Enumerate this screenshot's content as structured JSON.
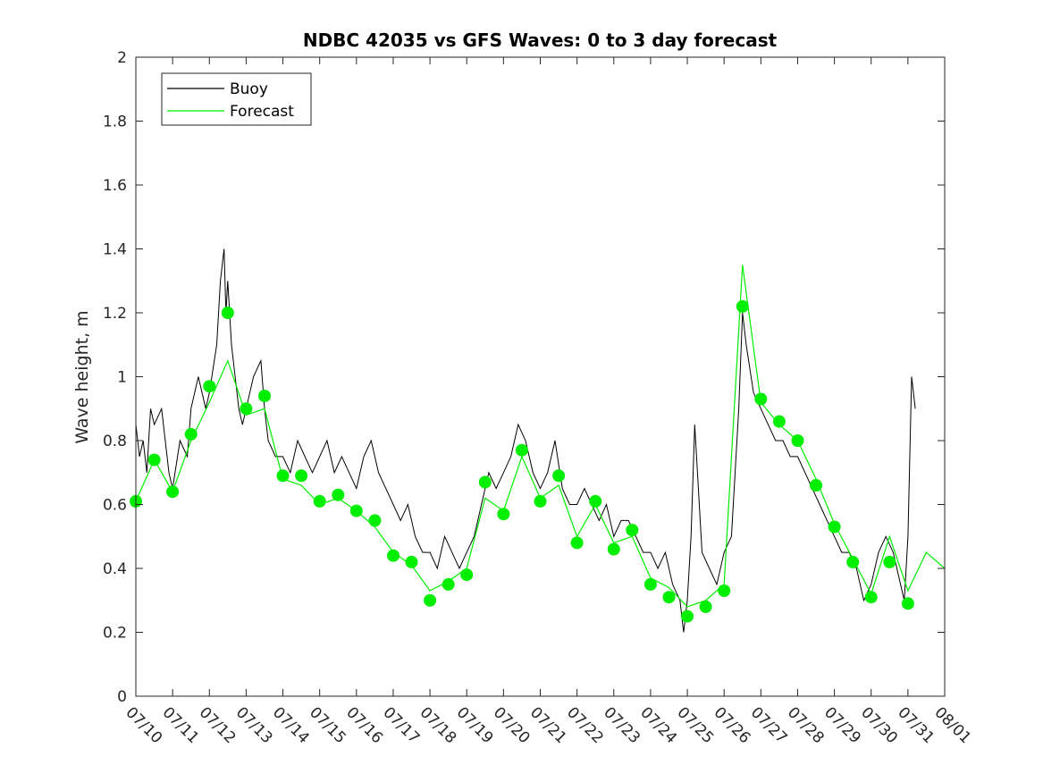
{
  "chart_data": {
    "type": "line",
    "title": "NDBC 42035 vs GFS Waves: 0 to 3 day forecast",
    "xlabel": "",
    "ylabel": "Wave height, m",
    "xlim": [
      "07/10",
      "08/01"
    ],
    "ylim": [
      0,
      2
    ],
    "yticks": [
      "0",
      "0.2",
      "0.4",
      "0.6",
      "0.8",
      "1",
      "1.2",
      "1.4",
      "1.6",
      "1.8",
      "2"
    ],
    "xticks": [
      "07/10",
      "07/11",
      "07/12",
      "07/13",
      "07/14",
      "07/15",
      "07/16",
      "07/17",
      "07/18",
      "07/19",
      "07/20",
      "07/21",
      "07/22",
      "07/23",
      "07/24",
      "07/25",
      "07/26",
      "07/27",
      "07/28",
      "07/29",
      "07/30",
      "07/31",
      "08/01"
    ],
    "grid": false,
    "legend": {
      "placement": "top-left",
      "entries": [
        "Buoy",
        "Forecast"
      ]
    },
    "colors": {
      "buoy": "#000000",
      "forecast": "#00ee00",
      "analysis_marker": "#00ee00"
    },
    "series": [
      {
        "name": "Buoy",
        "x_days": [
          0,
          0.1,
          0.2,
          0.3,
          0.4,
          0.5,
          0.7,
          0.9,
          1.0,
          1.2,
          1.4,
          1.5,
          1.7,
          1.9,
          2.0,
          2.2,
          2.3,
          2.4,
          2.45,
          2.5,
          2.6,
          2.7,
          2.8,
          2.9,
          3.0,
          3.2,
          3.4,
          3.5,
          3.6,
          3.8,
          4.0,
          4.2,
          4.4,
          4.6,
          4.8,
          5.0,
          5.2,
          5.4,
          5.6,
          5.8,
          6.0,
          6.2,
          6.4,
          6.6,
          6.8,
          7.0,
          7.2,
          7.4,
          7.6,
          7.8,
          8.0,
          8.2,
          8.4,
          8.6,
          8.8,
          9.0,
          9.2,
          9.4,
          9.6,
          9.8,
          10.0,
          10.2,
          10.4,
          10.6,
          10.8,
          11.0,
          11.2,
          11.4,
          11.6,
          11.8,
          12.0,
          12.2,
          12.4,
          12.6,
          12.8,
          13.0,
          13.2,
          13.4,
          13.6,
          13.8,
          14.0,
          14.2,
          14.4,
          14.6,
          14.8,
          14.9,
          15.0,
          15.1,
          15.2,
          15.4,
          15.6,
          15.8,
          16.0,
          16.2,
          16.4,
          16.5,
          16.6,
          16.8,
          17.0,
          17.2,
          17.4,
          17.6,
          17.8,
          18.0,
          18.2,
          18.4,
          18.6,
          18.8,
          19.0,
          19.2,
          19.4,
          19.6,
          19.8,
          20.0,
          20.2,
          20.4,
          20.6,
          20.8,
          20.9,
          21.0,
          21.1,
          21.2
        ],
        "values": [
          0.85,
          0.75,
          0.8,
          0.7,
          0.9,
          0.85,
          0.9,
          0.7,
          0.65,
          0.8,
          0.75,
          0.9,
          1.0,
          0.9,
          0.95,
          1.1,
          1.3,
          1.4,
          1.2,
          1.3,
          1.1,
          1.0,
          0.9,
          0.85,
          0.9,
          1.0,
          1.05,
          0.9,
          0.8,
          0.75,
          0.75,
          0.7,
          0.8,
          0.75,
          0.7,
          0.75,
          0.8,
          0.7,
          0.75,
          0.7,
          0.65,
          0.75,
          0.8,
          0.7,
          0.65,
          0.6,
          0.55,
          0.6,
          0.5,
          0.45,
          0.45,
          0.4,
          0.5,
          0.45,
          0.4,
          0.45,
          0.5,
          0.6,
          0.7,
          0.65,
          0.7,
          0.75,
          0.85,
          0.8,
          0.7,
          0.65,
          0.7,
          0.8,
          0.65,
          0.6,
          0.6,
          0.65,
          0.6,
          0.55,
          0.6,
          0.5,
          0.55,
          0.55,
          0.5,
          0.45,
          0.45,
          0.4,
          0.45,
          0.35,
          0.3,
          0.2,
          0.3,
          0.5,
          0.85,
          0.45,
          0.4,
          0.35,
          0.45,
          0.5,
          0.9,
          1.2,
          1.1,
          0.95,
          0.9,
          0.85,
          0.8,
          0.8,
          0.75,
          0.75,
          0.7,
          0.65,
          0.6,
          0.55,
          0.5,
          0.45,
          0.45,
          0.4,
          0.3,
          0.35,
          0.45,
          0.5,
          0.45,
          0.35,
          0.3,
          0.5,
          1.0,
          0.9
        ]
      },
      {
        "name": "Forecast",
        "x_days": [
          0,
          0.5,
          1,
          1.5,
          2,
          2.5,
          3,
          3.5,
          4,
          4.5,
          5,
          5.5,
          6,
          6.5,
          7,
          7.5,
          8,
          8.5,
          9,
          9.5,
          10,
          10.5,
          11,
          11.5,
          12,
          12.5,
          13,
          13.5,
          14,
          14.5,
          15,
          15.5,
          16,
          16.5,
          17,
          17.5,
          18,
          18.5,
          19,
          19.5,
          20,
          20.5,
          21,
          21.5,
          22
        ],
        "values": [
          0.61,
          0.74,
          0.64,
          0.8,
          0.92,
          1.05,
          0.88,
          0.9,
          0.68,
          0.66,
          0.6,
          0.62,
          0.58,
          0.53,
          0.45,
          0.41,
          0.33,
          0.36,
          0.4,
          0.62,
          0.58,
          0.75,
          0.62,
          0.66,
          0.5,
          0.6,
          0.48,
          0.5,
          0.37,
          0.34,
          0.28,
          0.3,
          0.35,
          1.35,
          0.92,
          0.85,
          0.8,
          0.68,
          0.54,
          0.43,
          0.32,
          0.5,
          0.33,
          0.45,
          0.4
        ]
      },
      {
        "name": "Analysis points",
        "x_days": [
          0,
          0.5,
          1,
          1.5,
          2,
          2.5,
          3,
          3.5,
          4,
          4.5,
          5,
          5.5,
          6,
          6.5,
          7,
          7.5,
          8,
          8.5,
          9,
          9.5,
          10,
          10.5,
          11,
          11.5,
          12,
          12.5,
          13,
          13.5,
          14,
          14.5,
          15,
          15.5,
          16,
          16.5,
          17,
          17.5,
          18,
          18.5,
          19,
          19.5,
          20,
          20.5,
          21
        ],
        "values": [
          0.61,
          0.74,
          0.64,
          0.82,
          0.97,
          1.2,
          0.9,
          0.94,
          0.69,
          0.69,
          0.61,
          0.63,
          0.58,
          0.55,
          0.44,
          0.42,
          0.3,
          0.35,
          0.38,
          0.67,
          0.57,
          0.77,
          0.61,
          0.69,
          0.48,
          0.61,
          0.46,
          0.52,
          0.35,
          0.31,
          0.25,
          0.28,
          0.33,
          1.22,
          0.93,
          0.86,
          0.8,
          0.66,
          0.53,
          0.42,
          0.31,
          0.42,
          0.29
        ]
      }
    ]
  }
}
